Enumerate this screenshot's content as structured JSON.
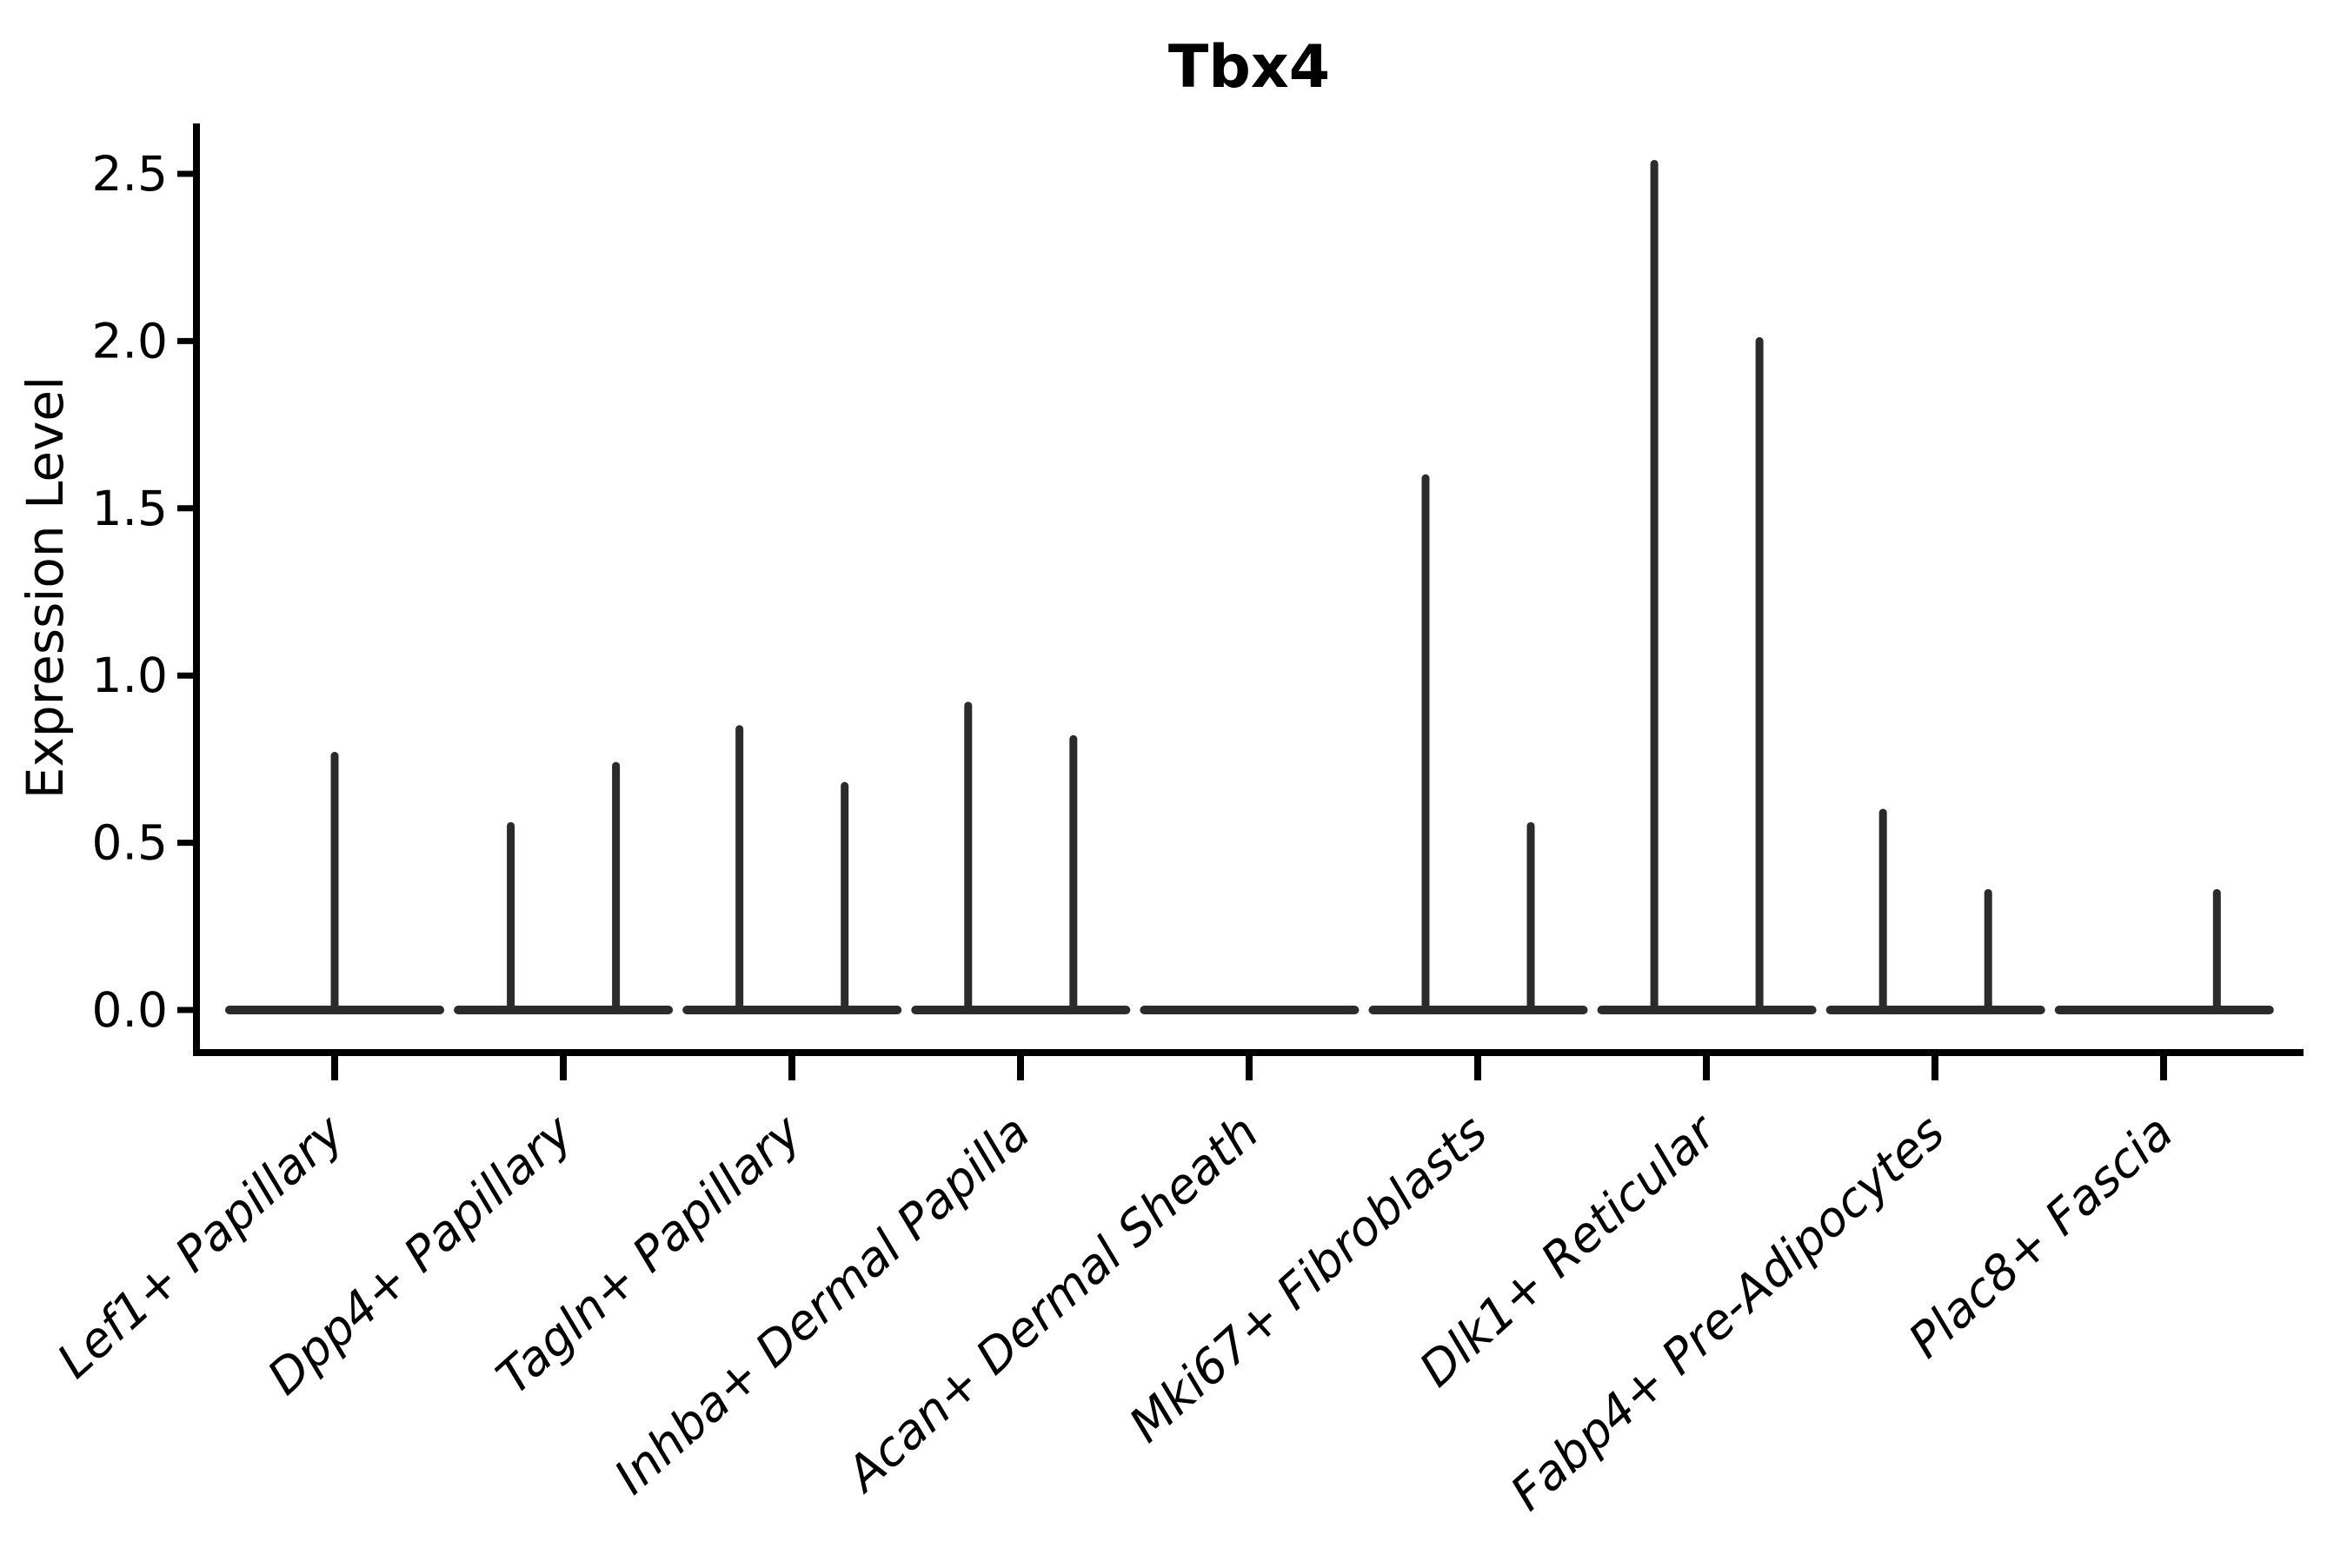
{
  "chart_data": {
    "type": "violin",
    "title": "Tbx4",
    "ylabel": "Expression Level",
    "xlabel": "",
    "grid": false,
    "legend": "none",
    "ylim": [
      -0.13,
      2.65
    ],
    "yticks": [
      0.0,
      0.5,
      1.0,
      1.5,
      2.0,
      2.5
    ],
    "ytick_labels": [
      "0.0",
      "0.5",
      "1.0",
      "1.5",
      "2.0",
      "2.5"
    ],
    "categories": [
      "Lef1+ Papillary",
      "Dpp4+ Papillary",
      "Tagln+ Papillary",
      "Inhba+ Dermal Papilla",
      "Acan+ Dermal Sheath",
      "Mki67+ Fibroblasts",
      "Dlk1+ Reticular",
      "Fabp4+ Pre-Adipocytes",
      "Plac8+ Fascia"
    ],
    "violin_base_half_width": 0.46,
    "violins": [
      {
        "label": "Lef1+ Papillary",
        "spikes": [
          {
            "offset": 0.0,
            "max": 0.76
          }
        ]
      },
      {
        "label": "Dpp4+ Papillary",
        "spikes": [
          {
            "offset": -0.23,
            "max": 0.55
          },
          {
            "offset": 0.23,
            "max": 0.73
          }
        ]
      },
      {
        "label": "Tagln+ Papillary",
        "spikes": [
          {
            "offset": -0.23,
            "max": 0.84
          },
          {
            "offset": 0.23,
            "max": 0.67
          }
        ]
      },
      {
        "label": "Inhba+ Dermal Papilla",
        "spikes": [
          {
            "offset": -0.23,
            "max": 0.91
          },
          {
            "offset": 0.23,
            "max": 0.81
          }
        ]
      },
      {
        "label": "Acan+ Dermal Sheath",
        "spikes": []
      },
      {
        "label": "Mki67+ Fibroblasts",
        "spikes": [
          {
            "offset": -0.23,
            "max": 1.59
          },
          {
            "offset": 0.23,
            "max": 0.55
          }
        ]
      },
      {
        "label": "Dlk1+ Reticular",
        "spikes": [
          {
            "offset": -0.23,
            "max": 2.53
          },
          {
            "offset": 0.23,
            "max": 2.0
          }
        ]
      },
      {
        "label": "Fabp4+ Pre-Adipocytes",
        "spikes": [
          {
            "offset": -0.23,
            "max": 0.59
          },
          {
            "offset": 0.23,
            "max": 0.35
          }
        ]
      },
      {
        "label": "Plac8+ Fascia",
        "spikes": [
          {
            "offset": 0.23,
            "max": 0.35
          }
        ]
      }
    ],
    "colors": {
      "violin_line": "#2b2b2b",
      "axis": "#000000",
      "text": "#000000"
    }
  }
}
